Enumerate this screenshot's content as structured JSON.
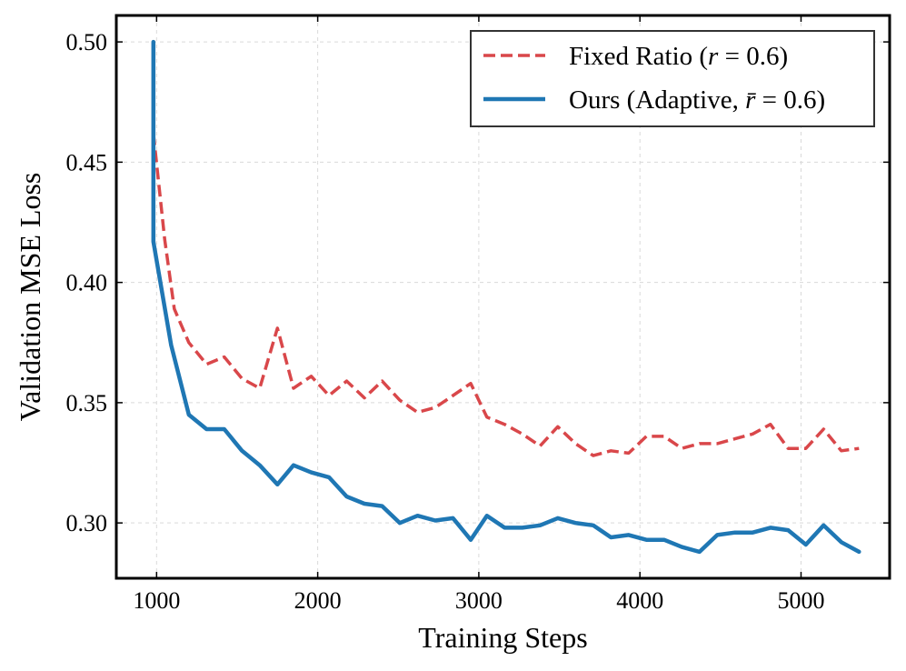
{
  "chart_data": {
    "type": "line",
    "title": "",
    "xlabel": "Training Steps",
    "ylabel": "Validation MSE Loss",
    "xlim": [
      750,
      5550
    ],
    "ylim": [
      0.277,
      0.511
    ],
    "xticks": [
      1000,
      2000,
      3000,
      4000,
      5000
    ],
    "xtick_labels": [
      "1000",
      "2000",
      "3000",
      "4000",
      "5000"
    ],
    "yticks": [
      0.3,
      0.35,
      0.4,
      0.45,
      0.5
    ],
    "ytick_labels": [
      "0.30",
      "0.35",
      "0.40",
      "0.45",
      "0.50"
    ],
    "grid": true,
    "legend_position": "top-right",
    "series": [
      {
        "name": "Fixed Ratio (r = 0.6)",
        "legend_prefix": "Fixed Ratio (",
        "legend_var": "r",
        "legend_suffix": " = 0.6)",
        "color": "#d9474a",
        "style": "dashed",
        "x": [
          980,
          1050,
          1110,
          1200,
          1310,
          1420,
          1530,
          1640,
          1750,
          1850,
          1960,
          2070,
          2180,
          2290,
          2400,
          2510,
          2620,
          2730,
          2840,
          2950,
          3050,
          3160,
          3270,
          3380,
          3490,
          3600,
          3710,
          3820,
          3930,
          4040,
          4150,
          4260,
          4370,
          4480,
          4590,
          4700,
          4810,
          4920,
          5030,
          5140,
          5250,
          5360
        ],
        "y": [
          0.462,
          0.418,
          0.389,
          0.375,
          0.366,
          0.369,
          0.36,
          0.356,
          0.381,
          0.356,
          0.361,
          0.353,
          0.359,
          0.352,
          0.359,
          0.351,
          0.346,
          0.348,
          0.353,
          0.358,
          0.344,
          0.341,
          0.337,
          0.332,
          0.34,
          0.333,
          0.328,
          0.33,
          0.329,
          0.336,
          0.336,
          0.331,
          0.333,
          0.333,
          0.335,
          0.337,
          0.341,
          0.331,
          0.331,
          0.339,
          0.33,
          0.331
        ]
      },
      {
        "name": "Ours (Adaptive, r̄ = 0.6)",
        "legend_prefix": "Ours (Adaptive, ",
        "legend_var": "r̄",
        "legend_suffix": " = 0.6)",
        "color": "#1f77b4",
        "style": "solid",
        "x": [
          980,
          980,
          1090,
          1200,
          1310,
          1420,
          1530,
          1640,
          1750,
          1850,
          1960,
          2070,
          2180,
          2290,
          2400,
          2510,
          2620,
          2730,
          2840,
          2950,
          3050,
          3160,
          3270,
          3380,
          3490,
          3600,
          3710,
          3820,
          3930,
          4040,
          4150,
          4260,
          4370,
          4480,
          4590,
          4700,
          4810,
          4920,
          5030,
          5140,
          5250,
          5360
        ],
        "y": [
          0.5,
          0.417,
          0.374,
          0.345,
          0.339,
          0.339,
          0.33,
          0.324,
          0.316,
          0.324,
          0.321,
          0.319,
          0.311,
          0.308,
          0.307,
          0.3,
          0.303,
          0.301,
          0.302,
          0.293,
          0.303,
          0.298,
          0.298,
          0.299,
          0.302,
          0.3,
          0.299,
          0.294,
          0.295,
          0.293,
          0.293,
          0.29,
          0.288,
          0.295,
          0.296,
          0.296,
          0.298,
          0.297,
          0.291,
          0.299,
          0.292,
          0.288
        ]
      }
    ]
  }
}
